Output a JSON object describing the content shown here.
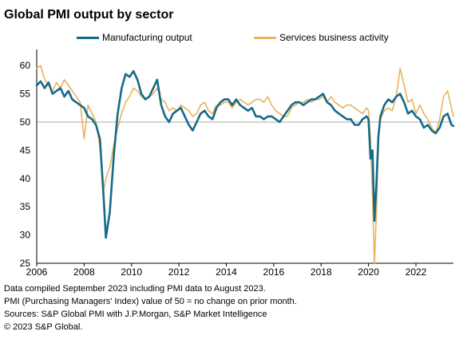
{
  "title": "Global PMI output by sector",
  "colors": {
    "manufacturing": "#156B88",
    "services": "#E8B35A",
    "reference_line": "#aaaaaa",
    "axis": "#000000"
  },
  "notes": [
    "Data compiled September 2023 including PMI data to August 2023.",
    "PMI (Purchasing Managers' Index) value of 50 = no change on prior month.",
    "Sources: S&P Global PMI with J.P.Morgan, S&P Market Intelligence",
    "© 2023 S&P Global."
  ],
  "chart_data": {
    "type": "line",
    "title": "Global PMI output by sector",
    "xlabel": "",
    "ylabel": "",
    "ylim": [
      25,
      62
    ],
    "xlim": [
      "2006-01",
      "2023-08"
    ],
    "y_ticks": [
      25,
      30,
      35,
      40,
      45,
      50,
      55,
      60
    ],
    "x_ticks": [
      "2006",
      "2008",
      "2010",
      "2012",
      "2014",
      "2016",
      "2018",
      "2020",
      "2022"
    ],
    "reference_line": 50,
    "grid": false,
    "legend_position": "top",
    "series": [
      {
        "name": "Manufacturing output",
        "points": [
          [
            "2006-01",
            56.5
          ],
          [
            "2006-03",
            57.2
          ],
          [
            "2006-05",
            56.0
          ],
          [
            "2006-07",
            57.0
          ],
          [
            "2006-09",
            55.0
          ],
          [
            "2006-11",
            55.5
          ],
          [
            "2007-01",
            56.0
          ],
          [
            "2007-03",
            54.5
          ],
          [
            "2007-05",
            55.5
          ],
          [
            "2007-07",
            54.0
          ],
          [
            "2007-09",
            53.5
          ],
          [
            "2007-11",
            53.0
          ],
          [
            "2008-01",
            52.5
          ],
          [
            "2008-03",
            51.0
          ],
          [
            "2008-05",
            50.5
          ],
          [
            "2008-07",
            49.5
          ],
          [
            "2008-09",
            47.0
          ],
          [
            "2008-11",
            36.0
          ],
          [
            "2008-12",
            29.5
          ],
          [
            "2009-02",
            34.0
          ],
          [
            "2009-04",
            44.0
          ],
          [
            "2009-06",
            51.5
          ],
          [
            "2009-08",
            56.0
          ],
          [
            "2009-10",
            58.5
          ],
          [
            "2009-12",
            58.0
          ],
          [
            "2010-02",
            59.0
          ],
          [
            "2010-04",
            57.5
          ],
          [
            "2010-06",
            55.0
          ],
          [
            "2010-08",
            54.0
          ],
          [
            "2010-10",
            54.5
          ],
          [
            "2010-12",
            56.0
          ],
          [
            "2011-02",
            57.5
          ],
          [
            "2011-04",
            53.0
          ],
          [
            "2011-06",
            51.0
          ],
          [
            "2011-08",
            50.0
          ],
          [
            "2011-10",
            51.5
          ],
          [
            "2011-12",
            52.0
          ],
          [
            "2012-02",
            52.5
          ],
          [
            "2012-04",
            51.0
          ],
          [
            "2012-06",
            49.5
          ],
          [
            "2012-08",
            48.5
          ],
          [
            "2012-10",
            50.0
          ],
          [
            "2012-12",
            51.5
          ],
          [
            "2013-02",
            52.0
          ],
          [
            "2013-04",
            51.0
          ],
          [
            "2013-06",
            50.5
          ],
          [
            "2013-08",
            52.5
          ],
          [
            "2013-10",
            53.5
          ],
          [
            "2013-12",
            54.0
          ],
          [
            "2014-02",
            54.0
          ],
          [
            "2014-04",
            53.0
          ],
          [
            "2014-06",
            54.0
          ],
          [
            "2014-08",
            53.0
          ],
          [
            "2014-10",
            52.5
          ],
          [
            "2014-12",
            52.0
          ],
          [
            "2015-02",
            52.5
          ],
          [
            "2015-04",
            51.0
          ],
          [
            "2015-06",
            51.0
          ],
          [
            "2015-08",
            50.5
          ],
          [
            "2015-10",
            51.0
          ],
          [
            "2015-12",
            51.0
          ],
          [
            "2016-02",
            50.5
          ],
          [
            "2016-04",
            50.0
          ],
          [
            "2016-06",
            51.0
          ],
          [
            "2016-08",
            52.0
          ],
          [
            "2016-10",
            53.0
          ],
          [
            "2016-12",
            53.5
          ],
          [
            "2017-02",
            53.5
          ],
          [
            "2017-04",
            53.0
          ],
          [
            "2017-06",
            53.5
          ],
          [
            "2017-08",
            54.0
          ],
          [
            "2017-10",
            54.0
          ],
          [
            "2017-12",
            54.5
          ],
          [
            "2018-02",
            55.0
          ],
          [
            "2018-04",
            53.5
          ],
          [
            "2018-06",
            53.0
          ],
          [
            "2018-08",
            52.0
          ],
          [
            "2018-10",
            51.5
          ],
          [
            "2018-12",
            51.0
          ],
          [
            "2019-02",
            50.5
          ],
          [
            "2019-04",
            50.5
          ],
          [
            "2019-06",
            49.5
          ],
          [
            "2019-08",
            49.5
          ],
          [
            "2019-10",
            50.5
          ],
          [
            "2019-12",
            51.0
          ],
          [
            "2020-01",
            50.5
          ],
          [
            "2020-02",
            43.5
          ],
          [
            "2020-03",
            45.0
          ],
          [
            "2020-04",
            32.5
          ],
          [
            "2020-05",
            39.0
          ],
          [
            "2020-06",
            47.5
          ],
          [
            "2020-07",
            51.0
          ],
          [
            "2020-09",
            53.0
          ],
          [
            "2020-11",
            54.0
          ],
          [
            "2021-01",
            53.5
          ],
          [
            "2021-03",
            54.5
          ],
          [
            "2021-05",
            55.0
          ],
          [
            "2021-07",
            53.5
          ],
          [
            "2021-09",
            51.5
          ],
          [
            "2021-11",
            52.0
          ],
          [
            "2022-01",
            51.0
          ],
          [
            "2022-03",
            50.5
          ],
          [
            "2022-05",
            49.0
          ],
          [
            "2022-07",
            49.5
          ],
          [
            "2022-09",
            48.5
          ],
          [
            "2022-11",
            48.0
          ],
          [
            "2023-01",
            49.0
          ],
          [
            "2023-03",
            51.0
          ],
          [
            "2023-05",
            51.5
          ],
          [
            "2023-07",
            49.5
          ],
          [
            "2023-08",
            49.3
          ]
        ]
      },
      {
        "name": "Services business activity",
        "points": [
          [
            "2006-01",
            59.5
          ],
          [
            "2006-03",
            60.0
          ],
          [
            "2006-05",
            57.5
          ],
          [
            "2006-07",
            56.5
          ],
          [
            "2006-09",
            55.5
          ],
          [
            "2006-11",
            57.0
          ],
          [
            "2007-01",
            56.0
          ],
          [
            "2007-03",
            57.5
          ],
          [
            "2007-05",
            56.5
          ],
          [
            "2007-07",
            55.5
          ],
          [
            "2007-09",
            54.5
          ],
          [
            "2007-11",
            53.5
          ],
          [
            "2008-01",
            47.0
          ],
          [
            "2008-03",
            53.0
          ],
          [
            "2008-05",
            51.5
          ],
          [
            "2008-07",
            50.0
          ],
          [
            "2008-09",
            45.5
          ],
          [
            "2008-11",
            38.0
          ],
          [
            "2008-12",
            40.0
          ],
          [
            "2009-02",
            42.0
          ],
          [
            "2009-04",
            46.0
          ],
          [
            "2009-06",
            49.0
          ],
          [
            "2009-08",
            51.5
          ],
          [
            "2009-10",
            53.5
          ],
          [
            "2009-12",
            54.5
          ],
          [
            "2010-02",
            56.0
          ],
          [
            "2010-04",
            55.5
          ],
          [
            "2010-06",
            54.5
          ],
          [
            "2010-08",
            54.0
          ],
          [
            "2010-10",
            54.5
          ],
          [
            "2010-12",
            55.0
          ],
          [
            "2011-02",
            56.0
          ],
          [
            "2011-04",
            54.0
          ],
          [
            "2011-06",
            53.5
          ],
          [
            "2011-08",
            52.0
          ],
          [
            "2011-10",
            52.5
          ],
          [
            "2011-12",
            52.0
          ],
          [
            "2012-02",
            53.0
          ],
          [
            "2012-04",
            52.5
          ],
          [
            "2012-06",
            52.0
          ],
          [
            "2012-08",
            51.0
          ],
          [
            "2012-10",
            51.5
          ],
          [
            "2012-12",
            53.0
          ],
          [
            "2013-02",
            53.5
          ],
          [
            "2013-04",
            52.0
          ],
          [
            "2013-06",
            51.5
          ],
          [
            "2013-08",
            53.0
          ],
          [
            "2013-10",
            53.0
          ],
          [
            "2013-12",
            53.5
          ],
          [
            "2014-02",
            53.5
          ],
          [
            "2014-04",
            52.5
          ],
          [
            "2014-06",
            53.5
          ],
          [
            "2014-08",
            54.0
          ],
          [
            "2014-10",
            53.5
          ],
          [
            "2014-12",
            53.0
          ],
          [
            "2015-02",
            53.5
          ],
          [
            "2015-04",
            54.0
          ],
          [
            "2015-06",
            54.0
          ],
          [
            "2015-08",
            53.5
          ],
          [
            "2015-10",
            54.5
          ],
          [
            "2015-12",
            53.0
          ],
          [
            "2016-02",
            52.0
          ],
          [
            "2016-04",
            51.5
          ],
          [
            "2016-06",
            51.0
          ],
          [
            "2016-08",
            51.0
          ],
          [
            "2016-10",
            52.5
          ],
          [
            "2016-12",
            53.0
          ],
          [
            "2017-02",
            53.5
          ],
          [
            "2017-04",
            53.5
          ],
          [
            "2017-06",
            54.0
          ],
          [
            "2017-08",
            53.5
          ],
          [
            "2017-10",
            54.0
          ],
          [
            "2017-12",
            54.0
          ],
          [
            "2018-02",
            54.5
          ],
          [
            "2018-04",
            53.5
          ],
          [
            "2018-06",
            54.5
          ],
          [
            "2018-08",
            53.5
          ],
          [
            "2018-10",
            53.0
          ],
          [
            "2018-12",
            52.5
          ],
          [
            "2019-02",
            53.0
          ],
          [
            "2019-04",
            53.0
          ],
          [
            "2019-06",
            52.5
          ],
          [
            "2019-08",
            52.0
          ],
          [
            "2019-10",
            51.5
          ],
          [
            "2019-12",
            52.5
          ],
          [
            "2020-01",
            52.0
          ],
          [
            "2020-02",
            47.0
          ],
          [
            "2020-03",
            37.0
          ],
          [
            "2020-04",
            25.0
          ],
          [
            "2020-05",
            34.0
          ],
          [
            "2020-06",
            47.0
          ],
          [
            "2020-07",
            50.5
          ],
          [
            "2020-09",
            52.0
          ],
          [
            "2020-11",
            52.5
          ],
          [
            "2021-01",
            52.0
          ],
          [
            "2021-03",
            54.5
          ],
          [
            "2021-05",
            59.5
          ],
          [
            "2021-07",
            56.5
          ],
          [
            "2021-09",
            53.5
          ],
          [
            "2021-11",
            54.0
          ],
          [
            "2022-01",
            51.5
          ],
          [
            "2022-03",
            53.0
          ],
          [
            "2022-05",
            51.5
          ],
          [
            "2022-07",
            50.5
          ],
          [
            "2022-09",
            49.0
          ],
          [
            "2022-11",
            48.0
          ],
          [
            "2023-01",
            50.5
          ],
          [
            "2023-03",
            54.5
          ],
          [
            "2023-05",
            55.5
          ],
          [
            "2023-07",
            52.5
          ],
          [
            "2023-08",
            51.0
          ]
        ]
      }
    ]
  }
}
